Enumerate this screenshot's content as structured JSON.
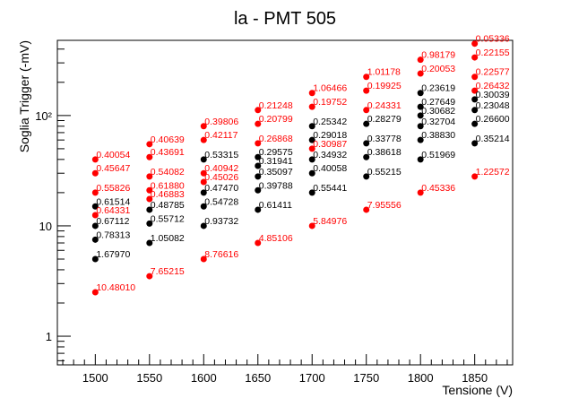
{
  "chart_data": {
    "type": "scatter",
    "title": "la - PMT 505",
    "xlabel": "Tensione (V)",
    "ylabel": "Soglia Trigger (-mV)",
    "xlim": [
      1465,
      1885
    ],
    "ylim": [
      0.55,
      480
    ],
    "yscale": "log",
    "grid": false,
    "x_ticks": [
      1500,
      1550,
      1600,
      1650,
      1700,
      1750,
      1800,
      1850
    ],
    "y_ticks": [
      {
        "value": 1,
        "label": "1"
      },
      {
        "value": 10,
        "label": "10"
      },
      {
        "value": 100,
        "label": "10²"
      }
    ],
    "colors": {
      "black": "#000000",
      "red": "#ff0000"
    },
    "points": [
      {
        "x": 1500,
        "y": 40,
        "label": "0.40054",
        "color": "red"
      },
      {
        "x": 1500,
        "y": 30,
        "label": "0.45647",
        "color": "red"
      },
      {
        "x": 1500,
        "y": 20,
        "label": "0.55826",
        "color": "red"
      },
      {
        "x": 1500,
        "y": 15,
        "label": "0.61514",
        "color": "black"
      },
      {
        "x": 1500,
        "y": 12.5,
        "label": "0.64331",
        "color": "red"
      },
      {
        "x": 1500,
        "y": 10,
        "label": "0.67112",
        "color": "black"
      },
      {
        "x": 1500,
        "y": 7.5,
        "label": "0.78313",
        "color": "black"
      },
      {
        "x": 1500,
        "y": 5,
        "label": "1.67970",
        "color": "black"
      },
      {
        "x": 1500,
        "y": 2.5,
        "label": "10.48010",
        "color": "red"
      },
      {
        "x": 1550,
        "y": 55,
        "label": "0.40639",
        "color": "red"
      },
      {
        "x": 1550,
        "y": 42,
        "label": "0.43691",
        "color": "red"
      },
      {
        "x": 1550,
        "y": 28,
        "label": "0.54082",
        "color": "red"
      },
      {
        "x": 1550,
        "y": 21,
        "label": "0.61880",
        "color": "red"
      },
      {
        "x": 1550,
        "y": 17.5,
        "label": "0.46883",
        "color": "red"
      },
      {
        "x": 1550,
        "y": 14,
        "label": "0.48785",
        "color": "black"
      },
      {
        "x": 1550,
        "y": 10.5,
        "label": "0.55712",
        "color": "black"
      },
      {
        "x": 1550,
        "y": 7,
        "label": "1.05082",
        "color": "black"
      },
      {
        "x": 1550,
        "y": 3.5,
        "label": "7.65215",
        "color": "red"
      },
      {
        "x": 1600,
        "y": 80,
        "label": "0.39806",
        "color": "red"
      },
      {
        "x": 1600,
        "y": 60,
        "label": "0.42117",
        "color": "red"
      },
      {
        "x": 1600,
        "y": 40,
        "label": "0.53315",
        "color": "black"
      },
      {
        "x": 1600,
        "y": 30,
        "label": "0.40942",
        "color": "red"
      },
      {
        "x": 1600,
        "y": 25,
        "label": "0.45026",
        "color": "red"
      },
      {
        "x": 1600,
        "y": 20,
        "label": "0.47470",
        "color": "black"
      },
      {
        "x": 1600,
        "y": 15,
        "label": "0.54728",
        "color": "black"
      },
      {
        "x": 1600,
        "y": 10,
        "label": "0.93732",
        "color": "black"
      },
      {
        "x": 1600,
        "y": 5,
        "label": "8.76616",
        "color": "red"
      },
      {
        "x": 1650,
        "y": 112,
        "label": "0.21248",
        "color": "red"
      },
      {
        "x": 1650,
        "y": 84,
        "label": "0.20799",
        "color": "red"
      },
      {
        "x": 1650,
        "y": 56,
        "label": "0.26868",
        "color": "red"
      },
      {
        "x": 1650,
        "y": 42,
        "label": "0.29575",
        "color": "black"
      },
      {
        "x": 1650,
        "y": 35,
        "label": "0.31941",
        "color": "black"
      },
      {
        "x": 1650,
        "y": 28,
        "label": "0.35097",
        "color": "black"
      },
      {
        "x": 1650,
        "y": 21,
        "label": "0.39788",
        "color": "black"
      },
      {
        "x": 1650,
        "y": 14,
        "label": "0.61411",
        "color": "black"
      },
      {
        "x": 1650,
        "y": 7,
        "label": "4.85106",
        "color": "red"
      },
      {
        "x": 1700,
        "y": 160,
        "label": "1.06466",
        "color": "red"
      },
      {
        "x": 1700,
        "y": 120,
        "label": "0.19752",
        "color": "red"
      },
      {
        "x": 1700,
        "y": 80,
        "label": "0.25342",
        "color": "black"
      },
      {
        "x": 1700,
        "y": 60,
        "label": "0.29018",
        "color": "black"
      },
      {
        "x": 1700,
        "y": 50,
        "label": "0.30987",
        "color": "red"
      },
      {
        "x": 1700,
        "y": 40,
        "label": "0.34932",
        "color": "black"
      },
      {
        "x": 1700,
        "y": 30,
        "label": "0.40058",
        "color": "black"
      },
      {
        "x": 1700,
        "y": 20,
        "label": "0.55441",
        "color": "black"
      },
      {
        "x": 1700,
        "y": 10,
        "label": "5.84976",
        "color": "red"
      },
      {
        "x": 1750,
        "y": 224,
        "label": "1.01178",
        "color": "red"
      },
      {
        "x": 1750,
        "y": 168,
        "label": "0.19925",
        "color": "red"
      },
      {
        "x": 1750,
        "y": 112,
        "label": "0.24331",
        "color": "red"
      },
      {
        "x": 1750,
        "y": 84,
        "label": "0.28279",
        "color": "black"
      },
      {
        "x": 1750,
        "y": 56,
        "label": "0.33778",
        "color": "black"
      },
      {
        "x": 1750,
        "y": 42,
        "label": "0.38618",
        "color": "black"
      },
      {
        "x": 1750,
        "y": 28,
        "label": "0.55215",
        "color": "black"
      },
      {
        "x": 1750,
        "y": 14,
        "label": "7.95556",
        "color": "red"
      },
      {
        "x": 1800,
        "y": 320,
        "label": "0.98179",
        "color": "red"
      },
      {
        "x": 1800,
        "y": 240,
        "label": "0.20053",
        "color": "red"
      },
      {
        "x": 1800,
        "y": 160,
        "label": "0.23619",
        "color": "black"
      },
      {
        "x": 1800,
        "y": 120,
        "label": "0.27649",
        "color": "black"
      },
      {
        "x": 1800,
        "y": 100,
        "label": "0.30682",
        "color": "black"
      },
      {
        "x": 1800,
        "y": 80,
        "label": "0.32704",
        "color": "black"
      },
      {
        "x": 1800,
        "y": 60,
        "label": "0.38830",
        "color": "black"
      },
      {
        "x": 1800,
        "y": 40,
        "label": "0.51969",
        "color": "black"
      },
      {
        "x": 1800,
        "y": 20,
        "label": "0.45336",
        "color": "red"
      },
      {
        "x": 1850,
        "y": 448,
        "label": "0.05336",
        "color": "red"
      },
      {
        "x": 1850,
        "y": 336,
        "label": "0.22155",
        "color": "red"
      },
      {
        "x": 1850,
        "y": 224,
        "label": "0.22577",
        "color": "red"
      },
      {
        "x": 1850,
        "y": 168,
        "label": "0.26432",
        "color": "red"
      },
      {
        "x": 1850,
        "y": 140,
        "label": "0.30039",
        "color": "black"
      },
      {
        "x": 1850,
        "y": 112,
        "label": "0.23048",
        "color": "black"
      },
      {
        "x": 1850,
        "y": 84,
        "label": "0.26600",
        "color": "black"
      },
      {
        "x": 1850,
        "y": 56,
        "label": "0.35214",
        "color": "black"
      },
      {
        "x": 1850,
        "y": 28,
        "label": "1.22572",
        "color": "red"
      }
    ]
  }
}
